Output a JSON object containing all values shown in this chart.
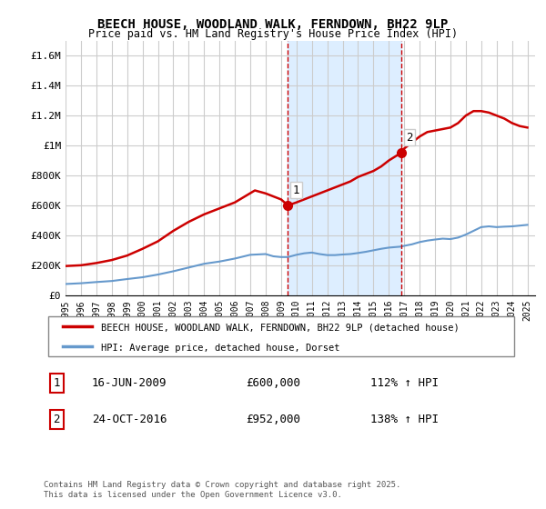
{
  "title": "BEECH HOUSE, WOODLAND WALK, FERNDOWN, BH22 9LP",
  "subtitle": "Price paid vs. HM Land Registry's House Price Index (HPI)",
  "legend_line1": "BEECH HOUSE, WOODLAND WALK, FERNDOWN, BH22 9LP (detached house)",
  "legend_line2": "HPI: Average price, detached house, Dorset",
  "sale1_date": "16-JUN-2009",
  "sale1_price": 600000,
  "sale1_pct": "112% ↑ HPI",
  "sale1_year": 2009.45,
  "sale2_date": "24-OCT-2016",
  "sale2_price": 952000,
  "sale2_pct": "138% ↑ HPI",
  "sale2_year": 2016.81,
  "house_color": "#cc0000",
  "hpi_color": "#6699cc",
  "shade_color": "#ddeeff",
  "dashed_line_color": "#cc0000",
  "footer": "Contains HM Land Registry data © Crown copyright and database right 2025.\nThis data is licensed under the Open Government Licence v3.0.",
  "ylim": [
    0,
    1700000
  ],
  "xlim_start": 1995.0,
  "xlim_end": 2025.5,
  "yticks": [
    0,
    200000,
    400000,
    600000,
    800000,
    1000000,
    1200000,
    1400000,
    1600000
  ],
  "ytick_labels": [
    "£0",
    "£200K",
    "£400K",
    "£600K",
    "£800K",
    "£1M",
    "£1.2M",
    "£1.4M",
    "£1.6M"
  ],
  "xticks": [
    1995,
    1996,
    1997,
    1998,
    1999,
    2000,
    2001,
    2002,
    2003,
    2004,
    2005,
    2006,
    2007,
    2008,
    2009,
    2010,
    2011,
    2012,
    2013,
    2014,
    2015,
    2016,
    2017,
    2018,
    2019,
    2020,
    2021,
    2022,
    2023,
    2024,
    2025
  ]
}
